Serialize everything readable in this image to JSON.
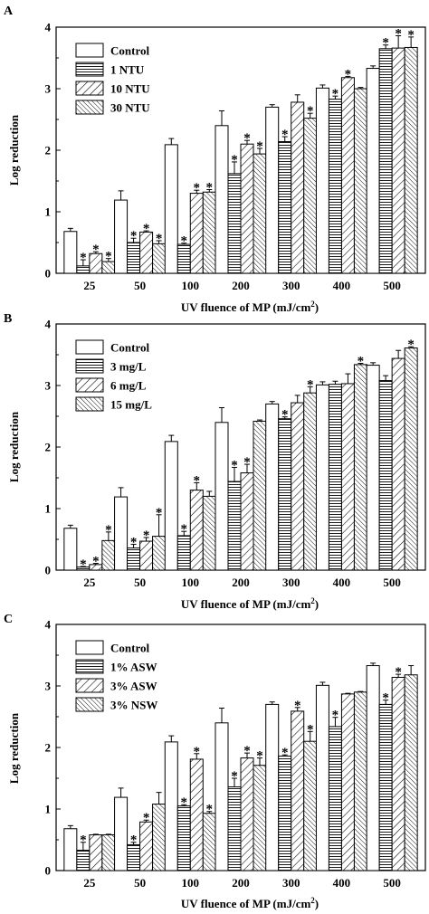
{
  "chart_data": [
    {
      "panel_label": "A",
      "type": "bar",
      "categories": [
        "25",
        "50",
        "100",
        "200",
        "300",
        "400",
        "500"
      ],
      "xlabel": "UV fluence of MP (mJ/cm²)",
      "xlabel_main": "UV fluence of MP (mJ/cm",
      "xlabel_sup": "2",
      "xlabel_end": ")",
      "ylabel": "Log reduction",
      "ylim": [
        0,
        4
      ],
      "yticks": [
        "0",
        "1",
        "2",
        "3",
        "4"
      ],
      "legend_position": "top-left",
      "series": [
        {
          "name": "Control",
          "pattern": "none",
          "values": [
            0.68,
            1.19,
            2.09,
            2.4,
            2.7,
            3.01,
            3.33
          ],
          "errors": [
            0.05,
            0.15,
            0.1,
            0.24,
            0.04,
            0.05,
            0.04
          ],
          "stars": [
            false,
            false,
            false,
            false,
            false,
            false,
            false
          ]
        },
        {
          "name": "1 NTU",
          "pattern": "horizontal",
          "values": [
            0.12,
            0.5,
            0.47,
            1.62,
            2.14,
            2.83,
            3.65
          ],
          "errors": [
            0.1,
            0.07,
            0.02,
            0.19,
            0.08,
            0.05,
            0.06
          ],
          "stars": [
            true,
            true,
            true,
            true,
            true,
            true,
            true
          ]
        },
        {
          "name": "10 NTU",
          "pattern": "diagonal-wide",
          "values": [
            0.32,
            0.67,
            1.3,
            2.1,
            2.78,
            3.18,
            3.66
          ],
          "errors": [
            0.03,
            0.02,
            0.05,
            0.06,
            0.12,
            0.02,
            0.2
          ],
          "stars": [
            true,
            true,
            true,
            true,
            false,
            true,
            true
          ]
        },
        {
          "name": "30 NTU",
          "pattern": "diagonal-dense",
          "values": [
            0.19,
            0.48,
            1.32,
            1.94,
            2.52,
            3.0,
            3.67
          ],
          "errors": [
            0.05,
            0.05,
            0.04,
            0.09,
            0.08,
            0.02,
            0.17
          ],
          "stars": [
            true,
            true,
            true,
            true,
            true,
            false,
            true
          ]
        }
      ]
    },
    {
      "panel_label": "B",
      "type": "bar",
      "categories": [
        "25",
        "50",
        "100",
        "200",
        "300",
        "400",
        "500"
      ],
      "xlabel": "UV fluence of MP (mJ/cm²)",
      "xlabel_main": "UV fluence of MP (mJ/cm",
      "xlabel_sup": "2",
      "xlabel_end": ")",
      "ylabel": "Log reduction",
      "ylim": [
        0,
        4
      ],
      "yticks": [
        "0",
        "1",
        "2",
        "3",
        "4"
      ],
      "legend_position": "top-left",
      "series": [
        {
          "name": "Control",
          "pattern": "none",
          "values": [
            0.68,
            1.19,
            2.09,
            2.4,
            2.7,
            3.01,
            3.33
          ],
          "errors": [
            0.05,
            0.15,
            0.1,
            0.24,
            0.04,
            0.05,
            0.04
          ],
          "stars": [
            false,
            false,
            false,
            false,
            false,
            false,
            false
          ]
        },
        {
          "name": "3 mg/L",
          "pattern": "horizontal",
          "values": [
            0.05,
            0.36,
            0.56,
            1.44,
            2.46,
            3.02,
            3.08
          ],
          "errors": [
            0.01,
            0.06,
            0.07,
            0.23,
            0.03,
            0.05,
            0.08
          ],
          "stars": [
            true,
            true,
            true,
            true,
            true,
            false,
            false
          ]
        },
        {
          "name": "6 mg/L",
          "pattern": "diagonal-wide",
          "values": [
            0.09,
            0.47,
            1.3,
            1.58,
            2.72,
            3.03,
            3.44
          ],
          "errors": [
            0.02,
            0.06,
            0.12,
            0.14,
            0.12,
            0.16,
            0.13
          ],
          "stars": [
            true,
            true,
            true,
            true,
            false,
            false,
            false
          ]
        },
        {
          "name": "15 mg/L",
          "pattern": "diagonal-dense",
          "values": [
            0.48,
            0.55,
            1.2,
            2.42,
            2.88,
            3.34,
            3.61
          ],
          "errors": [
            0.14,
            0.35,
            0.08,
            0.02,
            0.1,
            0.02,
            0.02
          ],
          "stars": [
            true,
            true,
            false,
            false,
            true,
            true,
            true
          ]
        }
      ]
    },
    {
      "panel_label": "C",
      "type": "bar",
      "categories": [
        "25",
        "50",
        "100",
        "200",
        "300",
        "400",
        "500"
      ],
      "xlabel": "UV fluence of MP (mJ/cm²)",
      "xlabel_main": "UV fluence of MP (mJ/cm",
      "xlabel_sup": "2",
      "xlabel_end": ")",
      "ylabel": "Log reduction",
      "ylim": [
        0,
        4
      ],
      "yticks": [
        "0",
        "1",
        "2",
        "3",
        "4"
      ],
      "legend_position": "top-left",
      "series": [
        {
          "name": "Control",
          "pattern": "none",
          "values": [
            0.68,
            1.19,
            2.09,
            2.4,
            2.7,
            3.01,
            3.33
          ],
          "errors": [
            0.05,
            0.15,
            0.1,
            0.24,
            0.04,
            0.05,
            0.04
          ],
          "stars": [
            false,
            false,
            false,
            false,
            false,
            false,
            false
          ]
        },
        {
          "name": "1% ASW",
          "pattern": "horizontal",
          "values": [
            0.33,
            0.42,
            1.05,
            1.36,
            1.86,
            2.34,
            2.7
          ],
          "errors": [
            0.13,
            0.04,
            0.02,
            0.14,
            0.02,
            0.15,
            0.07
          ],
          "stars": [
            true,
            true,
            true,
            true,
            true,
            true,
            true
          ]
        },
        {
          "name": "3% ASW",
          "pattern": "diagonal-wide",
          "values": [
            0.58,
            0.79,
            1.81,
            1.83,
            2.59,
            2.87,
            3.14
          ],
          "errors": [
            0.01,
            0.03,
            0.09,
            0.08,
            0.06,
            0.01,
            0.05
          ],
          "stars": [
            false,
            true,
            true,
            true,
            true,
            false,
            true
          ]
        },
        {
          "name": "3% NSW",
          "pattern": "diagonal-dense",
          "values": [
            0.58,
            1.08,
            0.93,
            1.71,
            2.1,
            2.9,
            3.18
          ],
          "errors": [
            0.01,
            0.19,
            0.03,
            0.12,
            0.16,
            0.01,
            0.15
          ],
          "stars": [
            false,
            false,
            true,
            true,
            true,
            false,
            false
          ]
        }
      ]
    }
  ]
}
